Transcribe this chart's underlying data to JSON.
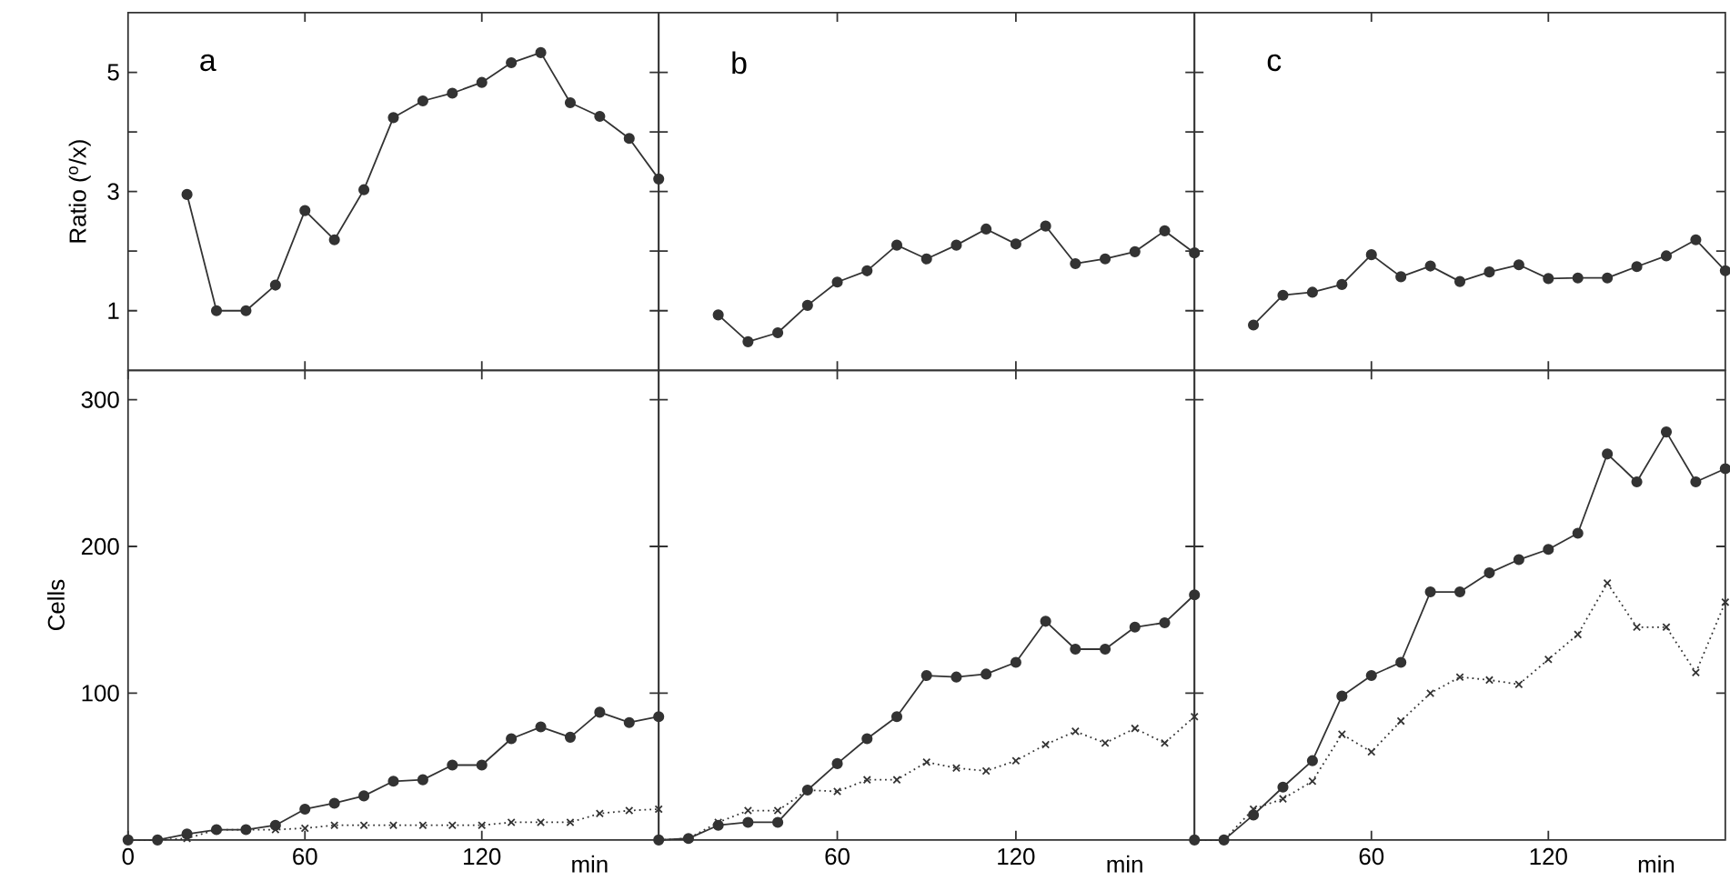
{
  "chart_data": [
    {
      "type": "line",
      "title": "a",
      "ylabel": "Ratio ($^{o}$/x)",
      "x": [
        20,
        30,
        40,
        50,
        60,
        70,
        80,
        90,
        100,
        110,
        120,
        130,
        140,
        150,
        160,
        170,
        180
      ],
      "xlim": [
        0,
        180
      ],
      "ylim": [
        0,
        6
      ],
      "xticks": [
        60,
        120
      ],
      "yticks": [
        1,
        {
          "value": 2,
          "label": null
        },
        3,
        {
          "value": 4,
          "label": null
        },
        5
      ],
      "tick_labels": "y",
      "series": [
        {
          "color": "#333333",
          "marker": "circle",
          "line_style": "solid",
          "values": [
            2.95,
            1.0,
            1.0,
            1.43,
            2.68,
            2.19,
            3.03,
            4.24,
            4.52,
            4.65,
            4.83,
            5.16,
            5.33,
            4.49,
            4.26,
            3.89,
            3.21
          ]
        }
      ]
    },
    {
      "type": "line",
      "title": "b",
      "x": [
        20,
        30,
        40,
        50,
        60,
        70,
        80,
        90,
        100,
        110,
        120,
        130,
        140,
        150,
        160,
        170,
        180
      ],
      "xlim": [
        0,
        180
      ],
      "ylim": [
        0,
        6
      ],
      "xticks": [
        60,
        120
      ],
      "yticks": [
        1,
        2,
        3,
        4,
        5
      ],
      "tick_labels": false,
      "series": [
        {
          "color": "#333333",
          "marker": "circle",
          "line_style": "solid",
          "values": [
            0.93,
            0.48,
            0.63,
            1.09,
            1.48,
            1.67,
            2.1,
            1.87,
            2.1,
            2.37,
            2.12,
            2.42,
            1.79,
            1.87,
            1.99,
            2.34,
            1.97
          ]
        }
      ]
    },
    {
      "type": "line",
      "title": "c",
      "x": [
        20,
        30,
        40,
        50,
        60,
        70,
        80,
        90,
        100,
        110,
        120,
        130,
        140,
        150,
        160,
        170,
        180
      ],
      "xlim": [
        0,
        180
      ],
      "ylim": [
        0,
        6
      ],
      "xticks": [
        60,
        120
      ],
      "yticks": [
        1,
        2,
        3,
        4,
        5
      ],
      "tick_labels": false,
      "series": [
        {
          "color": "#333333",
          "marker": "circle",
          "line_style": "solid",
          "values": [
            0.76,
            1.26,
            1.31,
            1.44,
            1.94,
            1.57,
            1.75,
            1.49,
            1.65,
            1.77,
            1.54,
            1.55,
            1.55,
            1.74,
            1.92,
            2.19,
            1.67
          ]
        }
      ]
    },
    {
      "type": "line",
      "xlabel": "min",
      "ylabel": "Cells",
      "x": [
        0,
        10,
        20,
        30,
        40,
        50,
        60,
        70,
        80,
        90,
        100,
        110,
        120,
        130,
        140,
        150,
        160,
        170,
        180
      ],
      "xlim": [
        0,
        180
      ],
      "ylim": [
        0,
        320
      ],
      "xticks": [
        0,
        60,
        120
      ],
      "yticks": [
        100,
        200,
        300
      ],
      "series": [
        {
          "color": "#333333",
          "marker": "circle",
          "line_style": "solid",
          "values": [
            0,
            0,
            4,
            7,
            7,
            10,
            21,
            25,
            30,
            40,
            41,
            51,
            51,
            69,
            77,
            70,
            87,
            80,
            84
          ]
        },
        {
          "color": "#333333",
          "marker": "cross",
          "line_style": "dotted",
          "values": [
            0,
            0,
            1,
            7,
            7,
            7,
            8,
            10,
            10,
            10,
            10,
            10,
            10,
            12,
            12,
            12,
            18,
            20,
            21
          ]
        }
      ]
    },
    {
      "type": "line",
      "xlabel": "min",
      "x": [
        0,
        10,
        20,
        30,
        40,
        50,
        60,
        70,
        80,
        90,
        100,
        110,
        120,
        130,
        140,
        150,
        160,
        170,
        180
      ],
      "xlim": [
        0,
        180
      ],
      "ylim": [
        0,
        320
      ],
      "xticks": [
        60,
        120
      ],
      "yticks": [
        100,
        200,
        300
      ],
      "tick_labels": "x",
      "series": [
        {
          "color": "#333333",
          "marker": "circle",
          "line_style": "solid",
          "values": [
            0,
            1,
            10,
            12,
            12,
            34,
            52,
            69,
            84,
            112,
            111,
            113,
            121,
            149,
            130,
            130,
            145,
            148,
            167
          ]
        },
        {
          "color": "#333333",
          "marker": "cross",
          "line_style": "dotted",
          "values": [
            0,
            1,
            12,
            20,
            20,
            34,
            33,
            41,
            41,
            53,
            49,
            47,
            54,
            65,
            74,
            66,
            76,
            66,
            84
          ]
        }
      ]
    },
    {
      "type": "line",
      "xlabel": "min",
      "x": [
        0,
        10,
        20,
        30,
        40,
        50,
        60,
        70,
        80,
        90,
        100,
        110,
        120,
        130,
        140,
        150,
        160,
        170,
        180
      ],
      "xlim": [
        0,
        180
      ],
      "ylim": [
        0,
        320
      ],
      "xticks": [
        60,
        120
      ],
      "yticks": [
        100,
        200,
        300
      ],
      "tick_labels": "x",
      "series": [
        {
          "color": "#333333",
          "marker": "circle",
          "line_style": "solid",
          "values": [
            0,
            0,
            17,
            36,
            54,
            98,
            112,
            121,
            169,
            169,
            182,
            191,
            198,
            209,
            263,
            244,
            278,
            244,
            253
          ]
        },
        {
          "color": "#333333",
          "marker": "cross",
          "line_style": "dotted",
          "values": [
            0,
            0,
            21,
            28,
            40,
            72,
            60,
            81,
            100,
            111,
            109,
            106,
            123,
            140,
            175,
            145,
            145,
            114,
            162
          ]
        }
      ]
    }
  ]
}
